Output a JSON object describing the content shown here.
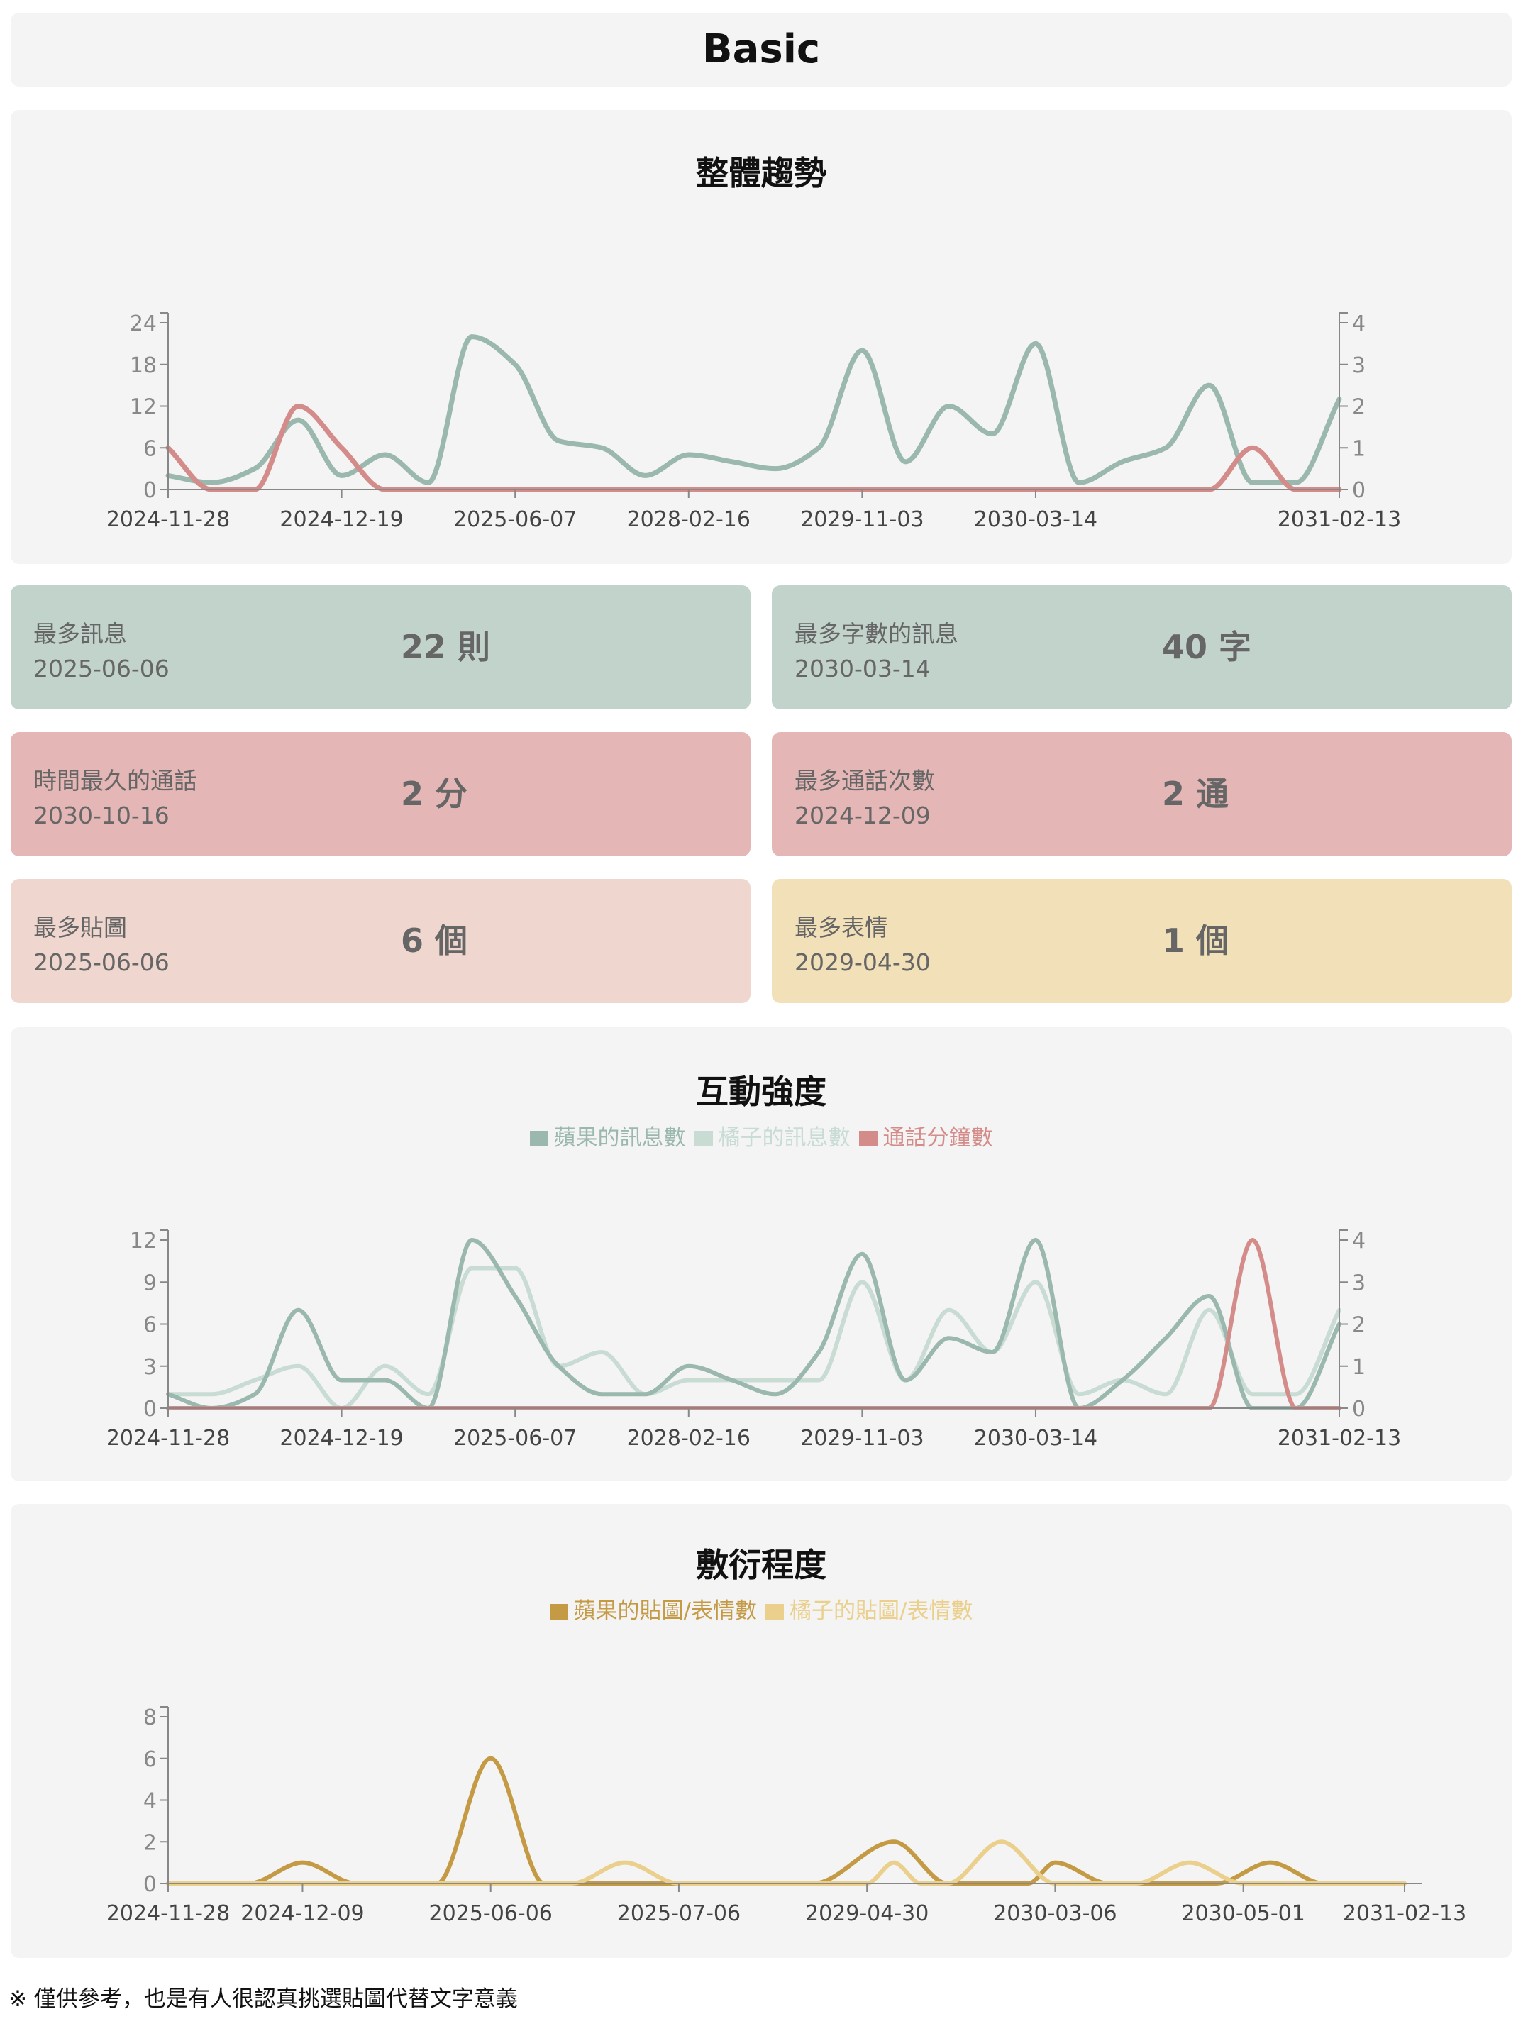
{
  "page_title": "Basic",
  "footnote": "※ 僅供參考，也是有人很認真挑選貼圖代替文字意義",
  "colors": {
    "green": "#9ab8ad",
    "green_light": "#c8dcd4",
    "red": "#d48c8a",
    "gold": "#c49a45",
    "yellow": "#ead08c",
    "card_green": "#c2d3cc",
    "card_red": "#e4b6b5",
    "card_pink": "#efd7cf",
    "card_yellow": "#f2e0b9"
  },
  "cards": [
    {
      "label": "最多訊息",
      "date": "2025-06-06",
      "value": "22 則",
      "color": "card_green"
    },
    {
      "label": "最多字數的訊息",
      "date": "2030-03-14",
      "value": "40 字",
      "color": "card_green"
    },
    {
      "label": "時間最久的通話",
      "date": "2030-10-16",
      "value": "2 分",
      "color": "card_red"
    },
    {
      "label": "最多通話次數",
      "date": "2024-12-09",
      "value": "2 通",
      "color": "card_red"
    },
    {
      "label": "最多貼圖",
      "date": "2025-06-06",
      "value": "6 個",
      "color": "card_pink"
    },
    {
      "label": "最多表情",
      "date": "2029-04-30",
      "value": "1 個",
      "color": "card_yellow"
    }
  ],
  "chart_data": [
    {
      "type": "line",
      "title": "整體趨勢",
      "x_ticks": [
        "2024-11-28",
        "2024-12-19",
        "2025-06-07",
        "2028-02-16",
        "2029-11-03",
        "2030-03-14",
        "2031-02-13"
      ],
      "x_tick_positions": [
        0,
        4,
        8,
        12,
        16,
        20,
        27
      ],
      "x_count": 27,
      "y_left": {
        "ticks": [
          0,
          6,
          12,
          18,
          24
        ],
        "max": 24
      },
      "y_right": {
        "ticks": [
          0,
          1,
          2,
          3,
          4
        ],
        "max": 4
      },
      "grid": false,
      "series": [
        {
          "axis": "left",
          "color": "green",
          "width": 7,
          "x": [
            0,
            1,
            2,
            3,
            4,
            5,
            6,
            7,
            8,
            9,
            10,
            11,
            12,
            13,
            14,
            15,
            16,
            17,
            18,
            19,
            20,
            21,
            22,
            23,
            24,
            25,
            26,
            27
          ],
          "values": [
            2,
            1,
            3,
            10,
            2,
            5,
            1,
            22,
            18,
            7,
            6,
            2,
            5,
            4,
            3,
            6,
            20,
            4,
            12,
            8,
            21,
            1,
            4,
            6,
            15,
            1,
            1,
            13
          ]
        },
        {
          "axis": "right",
          "color": "red",
          "width": 7,
          "x": [
            0,
            1,
            2,
            3,
            4,
            5,
            6,
            7,
            8,
            9,
            10,
            11,
            12,
            13,
            14,
            15,
            16,
            17,
            18,
            19,
            20,
            21,
            22,
            23,
            24,
            25,
            26,
            27
          ],
          "values": [
            1,
            0,
            0,
            2,
            1,
            0,
            0,
            0,
            0,
            0,
            0,
            0,
            0,
            0,
            0,
            0,
            0,
            0,
            0,
            0,
            0,
            0,
            0,
            0,
            0,
            1,
            0,
            0
          ]
        }
      ]
    },
    {
      "type": "line",
      "title": "互動強度",
      "legend": [
        "蘋果的訊息數",
        "橘子的訊息數",
        "通話分鐘數"
      ],
      "x_ticks": [
        "2024-11-28",
        "2024-12-19",
        "2025-06-07",
        "2028-02-16",
        "2029-11-03",
        "2030-03-14",
        "2031-02-13"
      ],
      "x_tick_positions": [
        0,
        4,
        8,
        12,
        16,
        20,
        27
      ],
      "x_count": 27,
      "y_left": {
        "ticks": [
          0,
          3,
          6,
          9,
          12
        ],
        "max": 12
      },
      "y_right": {
        "ticks": [
          0,
          1,
          2,
          3,
          4
        ],
        "max": 4
      },
      "grid": false,
      "series": [
        {
          "name": "橘子的訊息數",
          "axis": "left",
          "color": "green_light",
          "width": 6,
          "x": [
            0,
            1,
            2,
            3,
            4,
            5,
            6,
            7,
            8,
            9,
            10,
            11,
            12,
            13,
            14,
            15,
            16,
            17,
            18,
            19,
            20,
            21,
            22,
            23,
            24,
            25,
            26,
            27
          ],
          "values": [
            1,
            1,
            2,
            3,
            0,
            3,
            1,
            10,
            10,
            3,
            4,
            1,
            2,
            2,
            2,
            2,
            9,
            2,
            7,
            4,
            9,
            1,
            2,
            1,
            7,
            1,
            1,
            7
          ]
        },
        {
          "name": "蘋果的訊息數",
          "axis": "left",
          "color": "green",
          "width": 6,
          "x": [
            0,
            1,
            2,
            3,
            4,
            5,
            6,
            7,
            8,
            9,
            10,
            11,
            12,
            13,
            14,
            15,
            16,
            17,
            18,
            19,
            20,
            21,
            22,
            23,
            24,
            25,
            26,
            27
          ],
          "values": [
            1,
            0,
            1,
            7,
            2,
            2,
            0,
            12,
            8,
            3,
            1,
            1,
            3,
            2,
            1,
            4,
            11,
            2,
            5,
            4,
            12,
            0,
            2,
            5,
            8,
            0,
            0,
            6
          ]
        },
        {
          "name": "通話分鐘數",
          "axis": "right",
          "color": "red",
          "width": 6,
          "x": [
            0,
            24,
            25,
            26,
            27
          ],
          "values": [
            0,
            0,
            4,
            0,
            0
          ]
        }
      ]
    },
    {
      "type": "line",
      "title": "敷衍程度",
      "legend": [
        "蘋果的貼圖/表情數",
        "橘子的貼圖/表情數"
      ],
      "x_ticks": [
        "2024-11-28",
        "2024-12-09",
        "2025-06-06",
        "2025-07-06",
        "2029-04-30",
        "2030-03-06",
        "2030-05-01",
        "2031-02-13"
      ],
      "x_tick_positions": [
        0,
        5,
        12,
        19,
        26,
        33,
        40,
        46
      ],
      "x_count": 46,
      "y_left": {
        "ticks": [
          0,
          2,
          4,
          6,
          8
        ],
        "max": 8
      },
      "grid": false,
      "series": [
        {
          "name": "蘋果的貼圖/表情數",
          "axis": "left",
          "color": "gold",
          "width": 6,
          "x": [
            0,
            3,
            5,
            7,
            10,
            12,
            14,
            17,
            19,
            21,
            24,
            27,
            29,
            30,
            32,
            33,
            35,
            39,
            41,
            43,
            46
          ],
          "values": [
            0,
            0,
            1,
            0,
            0,
            6,
            0,
            0,
            0,
            0,
            0,
            2,
            0,
            0,
            0,
            1,
            0,
            0,
            1,
            0,
            0
          ]
        },
        {
          "name": "橘子的貼圖/表情數",
          "axis": "left",
          "color": "yellow",
          "width": 6,
          "x": [
            0,
            15,
            17,
            19,
            26,
            27,
            28,
            29,
            31,
            33,
            36,
            38,
            40,
            46
          ],
          "values": [
            0,
            0,
            1,
            0,
            0,
            1,
            0,
            0,
            2,
            0,
            0,
            1,
            0,
            0
          ]
        }
      ]
    }
  ]
}
